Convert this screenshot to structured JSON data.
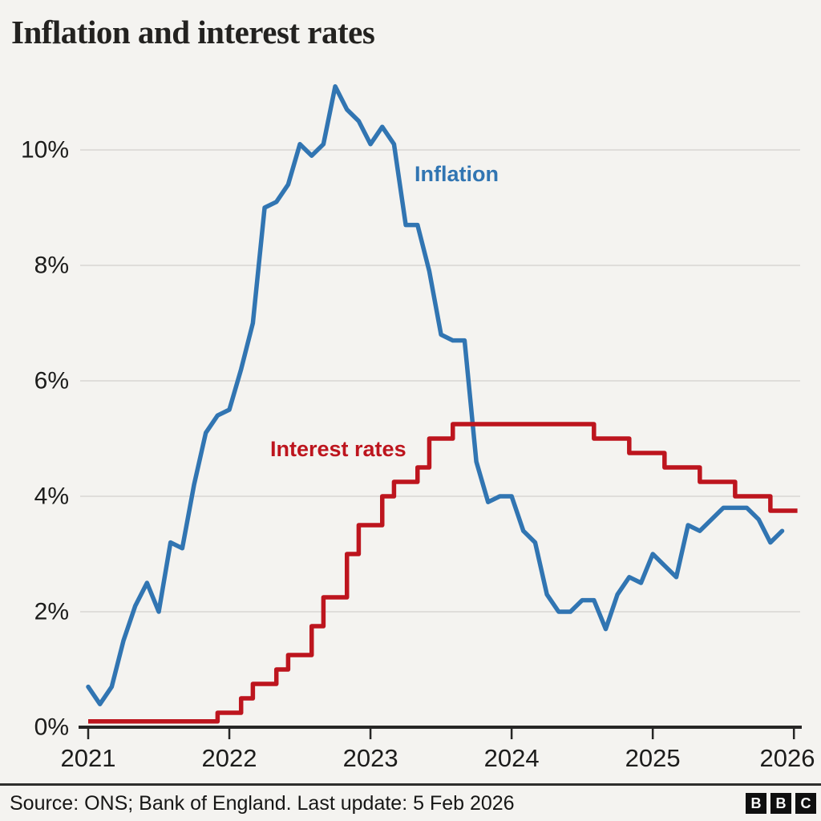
{
  "chart_data": {
    "type": "line",
    "title": "Inflation and interest rates",
    "x": {
      "tick_labels": [
        "2021",
        "2022",
        "2023",
        "2024",
        "2025",
        "2026"
      ],
      "unit": "year",
      "range_months_from_jan_2021": [
        0,
        61
      ]
    },
    "y": {
      "tick_labels": [
        "0%",
        "2%",
        "4%",
        "6%",
        "8%",
        "10%"
      ],
      "tick_values": [
        0,
        2,
        4,
        6,
        8,
        10
      ],
      "ylim": [
        0,
        11.6
      ],
      "unit": "percent"
    },
    "grid": true,
    "legend": "inline-labels",
    "series": [
      {
        "name": "Inflation",
        "label": {
          "text": "Inflation"
        },
        "color": "#3175b2",
        "points": "monthly",
        "start": "Jan 2021",
        "end": "Dec 2025",
        "values": [
          0.7,
          0.4,
          0.7,
          1.5,
          2.1,
          2.5,
          2.0,
          3.2,
          3.1,
          4.2,
          5.1,
          5.4,
          5.5,
          6.2,
          7.0,
          9.0,
          9.1,
          9.4,
          10.1,
          9.9,
          10.1,
          11.1,
          10.7,
          10.5,
          10.1,
          10.4,
          10.1,
          8.7,
          8.7,
          7.9,
          6.8,
          6.7,
          6.7,
          4.6,
          3.9,
          4.0,
          4.0,
          3.4,
          3.2,
          2.3,
          2.0,
          2.0,
          2.2,
          2.2,
          1.7,
          2.3,
          2.6,
          2.5,
          3.0,
          2.8,
          2.6,
          3.5,
          3.4,
          3.6,
          3.8,
          3.8,
          3.8,
          3.6,
          3.2,
          3.4
        ]
      },
      {
        "name": "Interest rates",
        "label": {
          "text": "Interest rates"
        },
        "color": "#bd151e",
        "points": "step",
        "end_month": 60.3,
        "steps": [
          {
            "date": "Jan 2021",
            "month": 0,
            "rate": 0.1
          },
          {
            "date": "Dec 2021",
            "month": 11,
            "rate": 0.25
          },
          {
            "date": "Feb 2022",
            "month": 13,
            "rate": 0.5
          },
          {
            "date": "Mar 2022",
            "month": 14,
            "rate": 0.75
          },
          {
            "date": "May 2022",
            "month": 16,
            "rate": 1.0
          },
          {
            "date": "Jun 2022",
            "month": 17,
            "rate": 1.25
          },
          {
            "date": "Aug 2022",
            "month": 19,
            "rate": 1.75
          },
          {
            "date": "Sep 2022",
            "month": 20,
            "rate": 2.25
          },
          {
            "date": "Nov 2022",
            "month": 22,
            "rate": 3.0
          },
          {
            "date": "Dec 2022",
            "month": 23,
            "rate": 3.5
          },
          {
            "date": "Feb 2023",
            "month": 25,
            "rate": 4.0
          },
          {
            "date": "Mar 2023",
            "month": 26,
            "rate": 4.25
          },
          {
            "date": "May 2023",
            "month": 28,
            "rate": 4.5
          },
          {
            "date": "Jun 2023",
            "month": 29,
            "rate": 5.0
          },
          {
            "date": "Aug 2023",
            "month": 31,
            "rate": 5.25
          },
          {
            "date": "Aug 2024",
            "month": 43,
            "rate": 5.0
          },
          {
            "date": "Nov 2024",
            "month": 46,
            "rate": 4.75
          },
          {
            "date": "Feb 2025",
            "month": 49,
            "rate": 4.5
          },
          {
            "date": "May 2025",
            "month": 52,
            "rate": 4.25
          },
          {
            "date": "Aug 2025",
            "month": 55,
            "rate": 4.0
          },
          {
            "date": "Nov 2025",
            "month": 58,
            "rate": 3.75
          }
        ]
      }
    ]
  },
  "footer": {
    "source": "Source: ONS; Bank of England. Last update: 5 Feb 2026",
    "logo_letters": [
      "B",
      "B",
      "C"
    ]
  },
  "colors": {
    "background": "#f4f3f0",
    "grid": "#d8d6d2",
    "axis": "#262625",
    "text": "#1c1c1b",
    "inflation_blue": "#3175b2",
    "interest_red": "#bd151e"
  }
}
